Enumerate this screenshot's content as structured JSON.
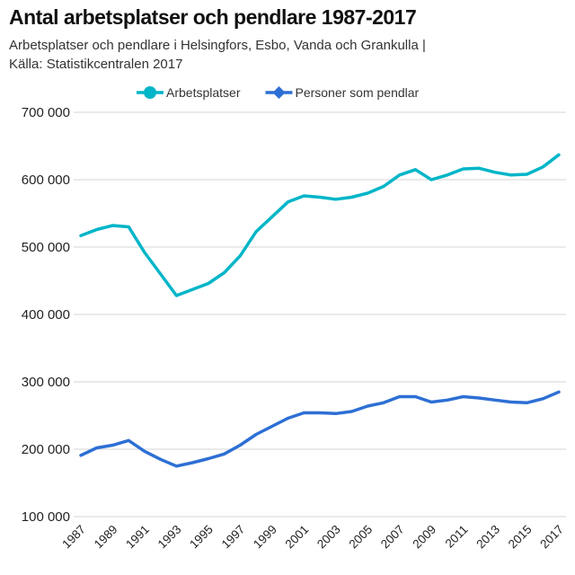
{
  "title": "Antal arbetsplatser och pendlare 1987-2017",
  "subtitle_line1": "Arbetsplatser och pendlare i Helsingfors, Esbo, Vanda och Grankulla |",
  "subtitle_line2": "Källa: Statistikcentralen 2017",
  "chart_data": {
    "type": "line",
    "title": "Antal arbetsplatser och pendlare 1987-2017",
    "xlabel": "",
    "ylabel": "",
    "x": [
      1987,
      1988,
      1989,
      1990,
      1991,
      1992,
      1993,
      1994,
      1995,
      1996,
      1997,
      1998,
      1999,
      2000,
      2001,
      2002,
      2003,
      2004,
      2005,
      2006,
      2007,
      2008,
      2009,
      2010,
      2011,
      2012,
      2013,
      2014,
      2015,
      2016,
      2017
    ],
    "x_tick_labels": [
      "1987",
      "1989",
      "1991",
      "1993",
      "1995",
      "1997",
      "1999",
      "2001",
      "2003",
      "2005",
      "2007",
      "2009",
      "2011",
      "2013",
      "2015",
      "2017"
    ],
    "ylim": [
      100000,
      700000
    ],
    "y_ticks": [
      100000,
      200000,
      300000,
      400000,
      500000,
      600000,
      700000
    ],
    "y_tick_labels": [
      "100 000",
      "200 000",
      "300 000",
      "400 000",
      "500 000",
      "600 000",
      "700 000"
    ],
    "grid": true,
    "legend_position": "top-left",
    "series": [
      {
        "name": "Arbetsplatser",
        "color": "#00b5c8",
        "marker": "circle",
        "values": [
          517000,
          526000,
          532000,
          530000,
          492000,
          460000,
          428000,
          437000,
          446000,
          462000,
          487000,
          523000,
          545000,
          567000,
          576000,
          574000,
          571000,
          574000,
          580000,
          590000,
          607000,
          615000,
          600000,
          607000,
          616000,
          617000,
          611000,
          607000,
          608000,
          619000,
          637000
        ]
      },
      {
        "name": "Personer som pendlar",
        "color": "#2d6fd4",
        "marker": "diamond",
        "values": [
          191000,
          202000,
          206000,
          213000,
          197000,
          185000,
          175000,
          180000,
          186000,
          193000,
          206000,
          222000,
          234000,
          246000,
          254000,
          254000,
          253000,
          256000,
          264000,
          269000,
          278000,
          278000,
          270000,
          273000,
          278000,
          276000,
          273000,
          270000,
          269000,
          275000,
          285000
        ]
      }
    ]
  }
}
